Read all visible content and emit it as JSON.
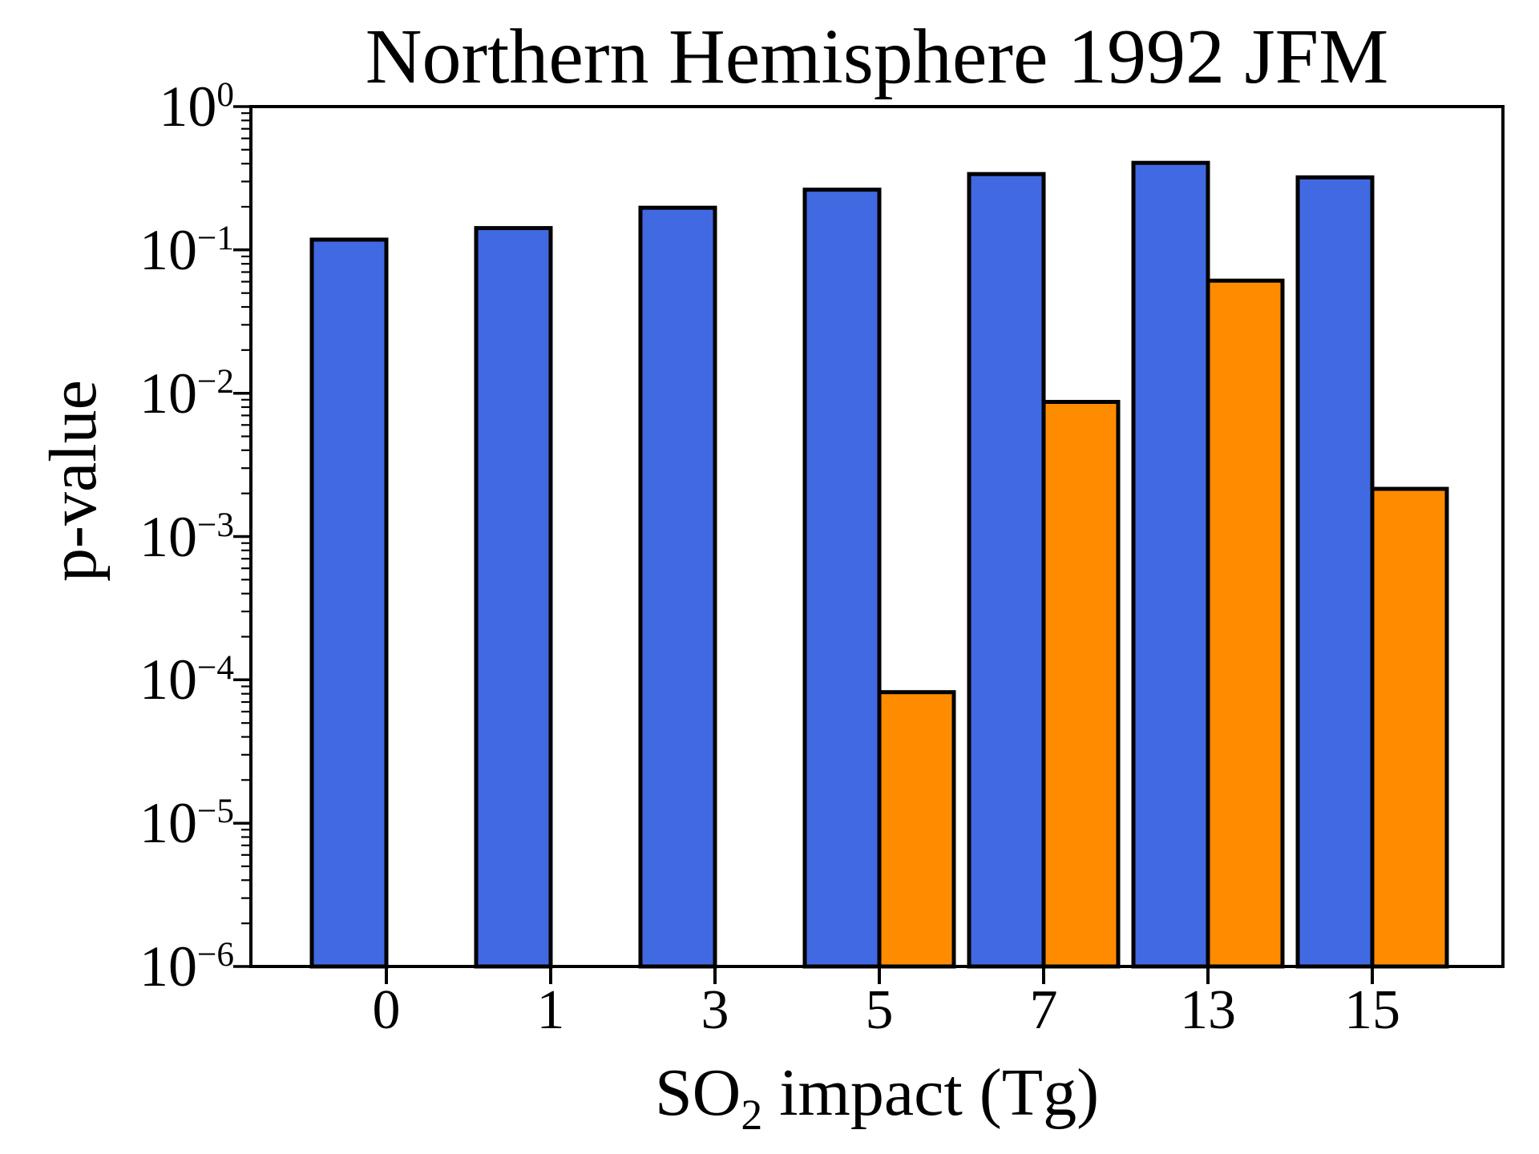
{
  "figure": {
    "title": "Northern Hemisphere 1992 JFM",
    "ylabel": "p-value",
    "xlabel": {
      "pre": "SO",
      "sub": "2",
      "post": " impact (Tg)"
    }
  },
  "chart_data": {
    "type": "bar",
    "title": "Northern Hemisphere 1992 JFM",
    "xlabel": "SO2 impact (Tg)",
    "ylabel": "p-value",
    "yscale": "log",
    "ylim": [
      1e-06,
      1
    ],
    "y_tick_exponents": [
      0,
      -1,
      -2,
      -3,
      -4,
      -5,
      -6
    ],
    "categories": [
      "0",
      "1",
      "3",
      "5",
      "7",
      "13",
      "15"
    ],
    "series": [
      {
        "color": "#4169E1",
        "values": [
          0.118,
          0.142,
          0.197,
          0.263,
          0.338,
          0.405,
          0.321
        ]
      },
      {
        "color": "#FF8C00",
        "values": [
          null,
          null,
          null,
          8.2e-05,
          0.0087,
          0.061,
          0.00215
        ]
      }
    ],
    "bar_edge_color": "#000000",
    "axis_color": "#000000",
    "grid": false,
    "legend": "none"
  }
}
